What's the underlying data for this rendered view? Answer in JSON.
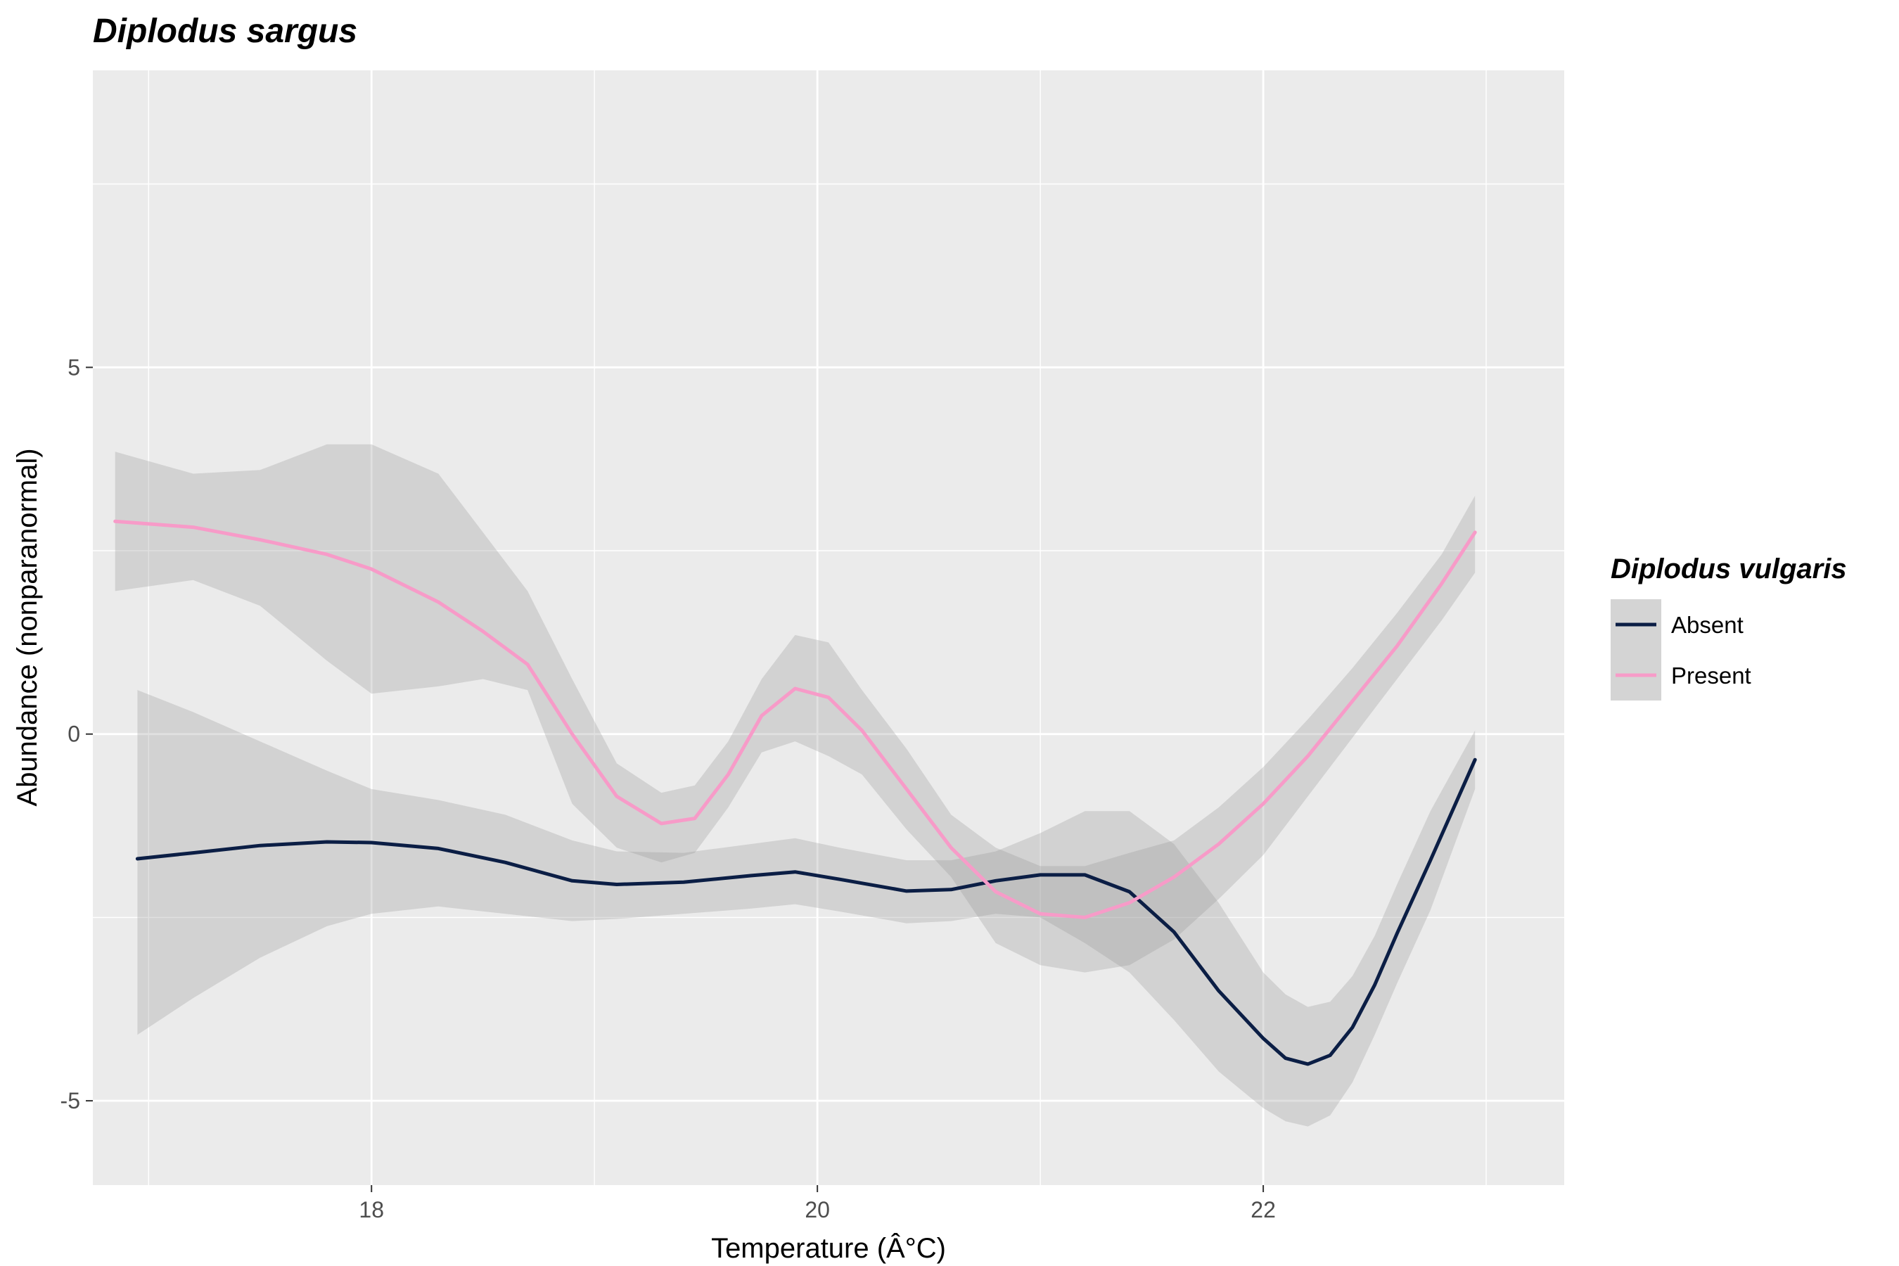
{
  "chart_data": {
    "type": "scatter",
    "title": "Diplodus sargus",
    "xlabel": "Temperature (Â°C)",
    "ylabel": "Abundance (nonparanormal)",
    "xlim": [
      16.75,
      23.35
    ],
    "ylim": [
      -6.15,
      9.05
    ],
    "x_ticks": [
      18,
      20,
      22
    ],
    "x_tick_labels": [
      "18",
      "20",
      "22"
    ],
    "y_ticks": [
      -5,
      0,
      5
    ],
    "y_tick_labels": [
      "-5",
      "0",
      "5"
    ],
    "grid": true,
    "background_color": "#EBEBEB",
    "legend": {
      "title": "Diplodus vulgaris",
      "position": "right"
    },
    "series": [
      {
        "name": "Absent",
        "color": "#0B1E45",
        "smooth": {
          "x": [
            16.95,
            17.2,
            17.5,
            17.8,
            18.0,
            18.3,
            18.6,
            18.9,
            19.1,
            19.4,
            19.7,
            19.9,
            20.1,
            20.4,
            20.6,
            20.8,
            21.0,
            21.2,
            21.4,
            21.6,
            21.8,
            22.0,
            22.1,
            22.2,
            22.3,
            22.4,
            22.5,
            22.6,
            22.75,
            22.95
          ],
          "y": [
            -1.7,
            -1.62,
            -1.52,
            -1.47,
            -1.48,
            -1.56,
            -1.75,
            -2.0,
            -2.05,
            -2.02,
            -1.93,
            -1.88,
            -1.98,
            -2.14,
            -2.12,
            -2.0,
            -1.92,
            -1.92,
            -2.15,
            -2.7,
            -3.5,
            -4.15,
            -4.42,
            -4.5,
            -4.38,
            -4.0,
            -3.42,
            -2.72,
            -1.72,
            -0.35
          ]
        },
        "band_upper": [
          0.6,
          0.3,
          -0.1,
          -0.5,
          -0.75,
          -0.9,
          -1.1,
          -1.45,
          -1.6,
          -1.62,
          -1.5,
          -1.42,
          -1.55,
          -1.72,
          -1.72,
          -1.6,
          -1.35,
          -1.05,
          -1.05,
          -1.5,
          -2.3,
          -3.25,
          -3.55,
          -3.72,
          -3.65,
          -3.3,
          -2.75,
          -2.05,
          -1.05,
          0.05
        ],
        "band_lower": [
          -4.1,
          -3.6,
          -3.05,
          -2.62,
          -2.45,
          -2.35,
          -2.45,
          -2.55,
          -2.52,
          -2.45,
          -2.38,
          -2.32,
          -2.42,
          -2.58,
          -2.55,
          -2.45,
          -2.5,
          -2.85,
          -3.25,
          -3.9,
          -4.6,
          -5.1,
          -5.28,
          -5.35,
          -5.2,
          -4.75,
          -4.1,
          -3.4,
          -2.4,
          -0.75
        ]
      },
      {
        "name": "Present",
        "color": "#F79BC8",
        "smooth": {
          "x": [
            16.85,
            17.2,
            17.5,
            17.8,
            18.0,
            18.3,
            18.5,
            18.7,
            18.9,
            19.1,
            19.3,
            19.45,
            19.6,
            19.75,
            19.9,
            20.05,
            20.2,
            20.4,
            20.6,
            20.8,
            21.0,
            21.2,
            21.4,
            21.6,
            21.8,
            22.0,
            22.2,
            22.4,
            22.6,
            22.8,
            22.95
          ],
          "y": [
            2.9,
            2.82,
            2.65,
            2.45,
            2.25,
            1.8,
            1.4,
            0.95,
            0.0,
            -0.85,
            -1.22,
            -1.15,
            -0.55,
            0.25,
            0.62,
            0.5,
            0.05,
            -0.75,
            -1.55,
            -2.15,
            -2.45,
            -2.5,
            -2.3,
            -1.95,
            -1.5,
            -0.95,
            -0.3,
            0.45,
            1.2,
            2.05,
            2.75
          ]
        },
        "band_upper": [
          3.85,
          3.55,
          3.6,
          3.95,
          3.95,
          3.55,
          2.75,
          1.95,
          0.75,
          -0.4,
          -0.8,
          -0.7,
          -0.1,
          0.75,
          1.35,
          1.25,
          0.6,
          -0.2,
          -1.1,
          -1.55,
          -1.8,
          -1.8,
          -1.62,
          -1.45,
          -1.0,
          -0.45,
          0.2,
          0.9,
          1.65,
          2.45,
          3.25
        ],
        "band_lower": [
          1.95,
          2.1,
          1.75,
          1.0,
          0.55,
          0.65,
          0.75,
          0.6,
          -0.95,
          -1.55,
          -1.75,
          -1.62,
          -1.0,
          -0.25,
          -0.1,
          -0.3,
          -0.55,
          -1.3,
          -1.95,
          -2.85,
          -3.15,
          -3.25,
          -3.15,
          -2.8,
          -2.25,
          -1.65,
          -0.85,
          -0.05,
          0.75,
          1.55,
          2.2
        ]
      }
    ]
  }
}
